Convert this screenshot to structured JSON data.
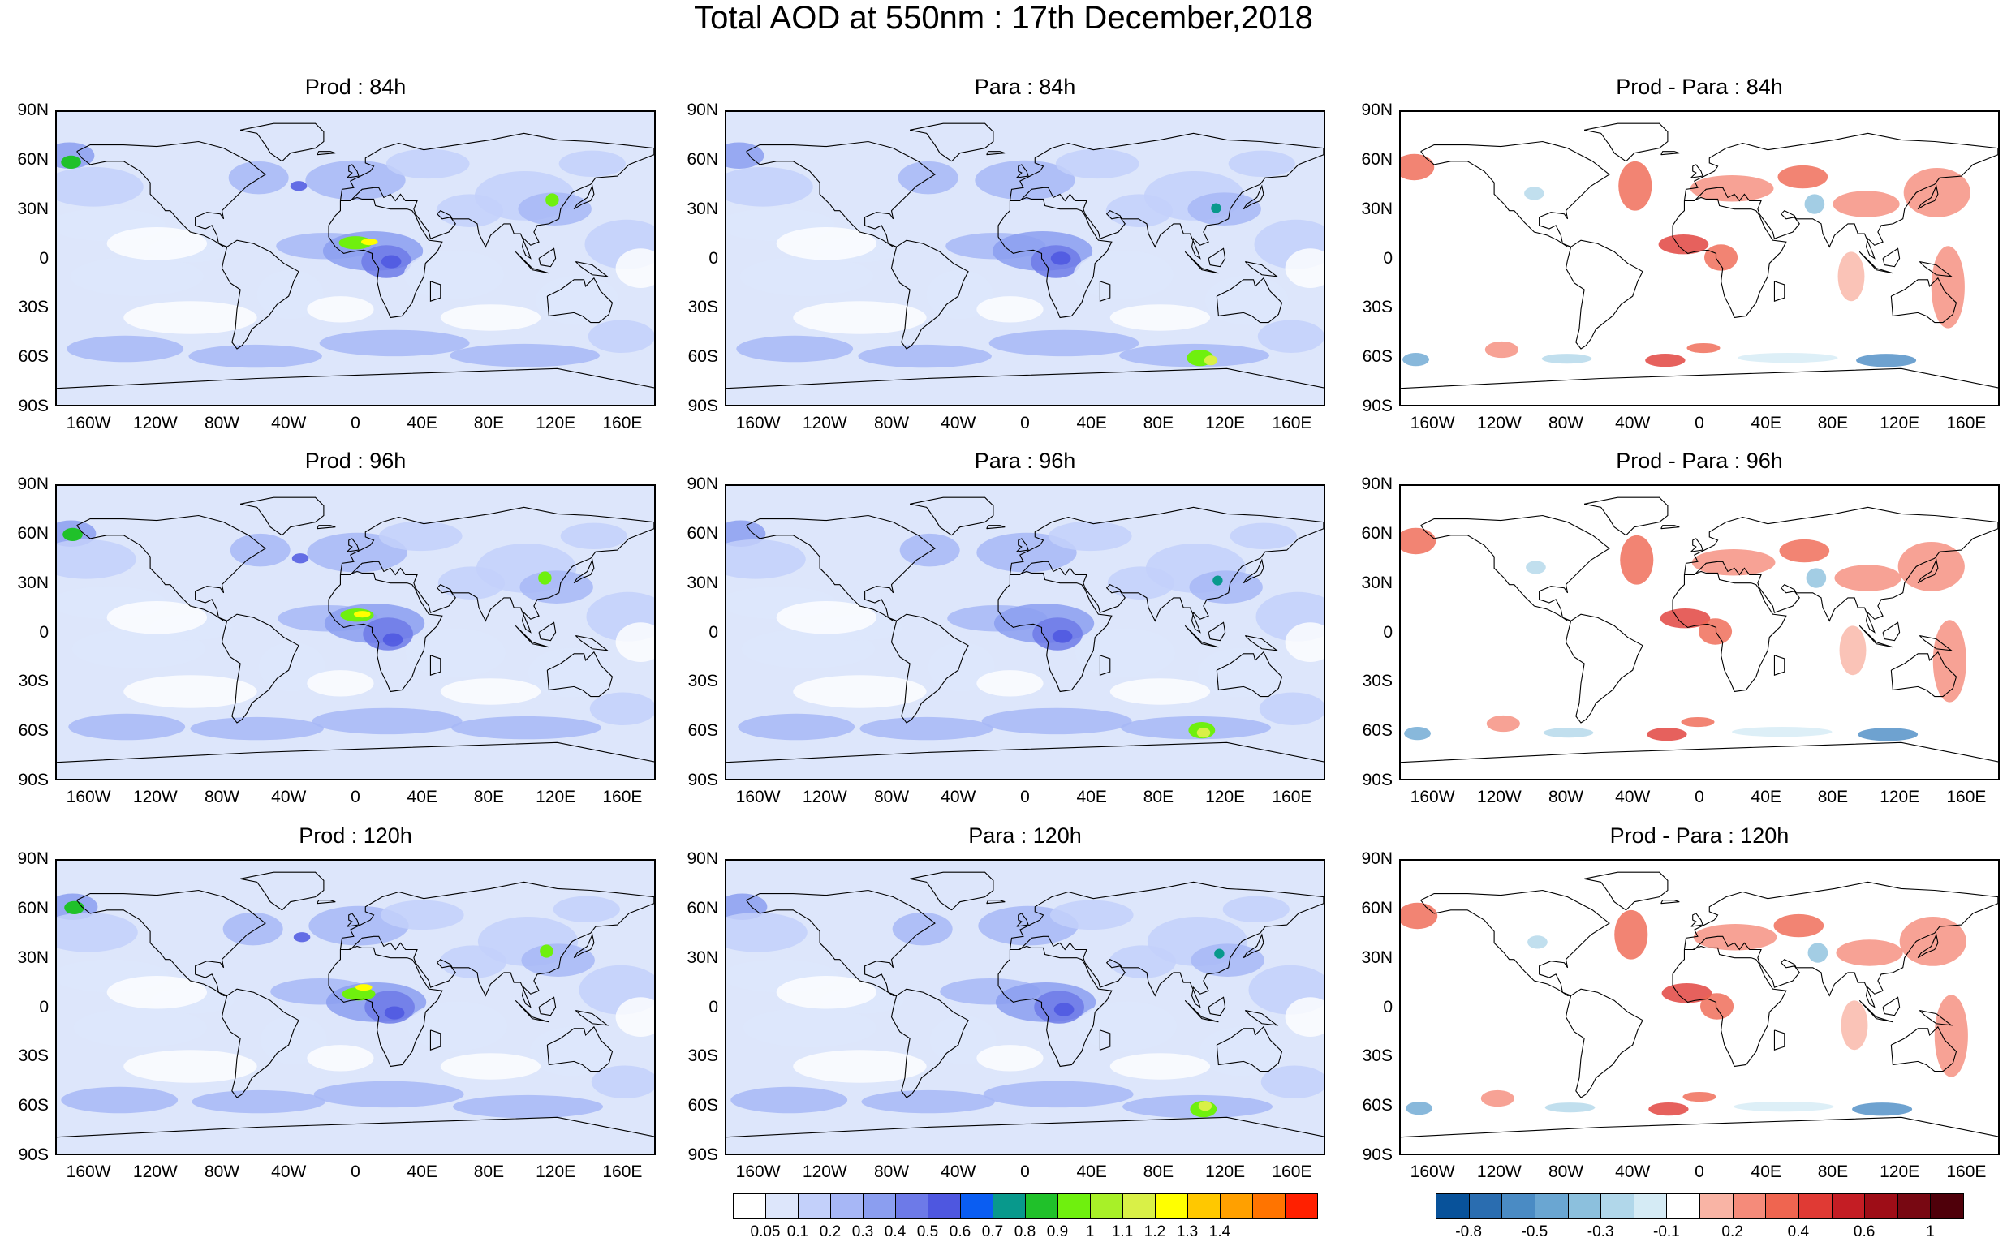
{
  "title": "Total AOD at 550nm : 17th December,2018",
  "panel_titles": {
    "r0c0": "Prod : 84h",
    "r0c1": "Para : 84h",
    "r0c2": "Prod - Para : 84h",
    "r1c0": "Prod : 96h",
    "r1c1": "Para : 96h",
    "r1c2": "Prod - Para : 96h",
    "r2c0": "Prod : 120h",
    "r2c1": "Para : 120h",
    "r2c2": "Prod - Para : 120h"
  },
  "lat_labels": [
    "90N",
    "60N",
    "30N",
    "0",
    "30S",
    "60S",
    "90S"
  ],
  "lon_labels": [
    "160W",
    "120W",
    "80W",
    "40W",
    "0",
    "40E",
    "80E",
    "120E",
    "160E"
  ],
  "map": {
    "projection": "cylindrical-equidistant",
    "lon_range": [
      -180,
      180
    ],
    "lat_range": [
      -90,
      90
    ],
    "background": "#ffffff",
    "coastline_color": "#000000"
  },
  "colorbars": {
    "aod": {
      "colors": [
        "#ffffff",
        "#dde6fb",
        "#c3d0fa",
        "#a7b7f6",
        "#8b9ef0",
        "#6d7ae8",
        "#4e57e0",
        "#0a5df2",
        "#08998c",
        "#20c12a",
        "#6ff00e",
        "#a8f028",
        "#d9f047",
        "#ffff00",
        "#ffc800",
        "#ffa000",
        "#ff7400",
        "#ff2000"
      ],
      "labels": [
        "0.05",
        "0.1",
        "0.2",
        "0.3",
        "0.4",
        "0.5",
        "0.6",
        "0.7",
        "0.8",
        "0.9",
        "1",
        "1.1",
        "1.2",
        "1.3",
        "1.4"
      ]
    },
    "diff": {
      "colors": [
        "#08529a",
        "#2a6db0",
        "#4a8bc4",
        "#6aa6d2",
        "#8cc0dd",
        "#b1d7ea",
        "#d5ebf5",
        "#ffffff",
        "#f9b4a5",
        "#f58b7a",
        "#ef6550",
        "#e03a34",
        "#c41d24",
        "#9e0d17",
        "#780812",
        "#4f000a"
      ],
      "labels": [
        "-0.8",
        "-0.5",
        "-0.3",
        "-0.1",
        "0.2",
        "0.4",
        "0.6",
        "1"
      ]
    }
  }
}
